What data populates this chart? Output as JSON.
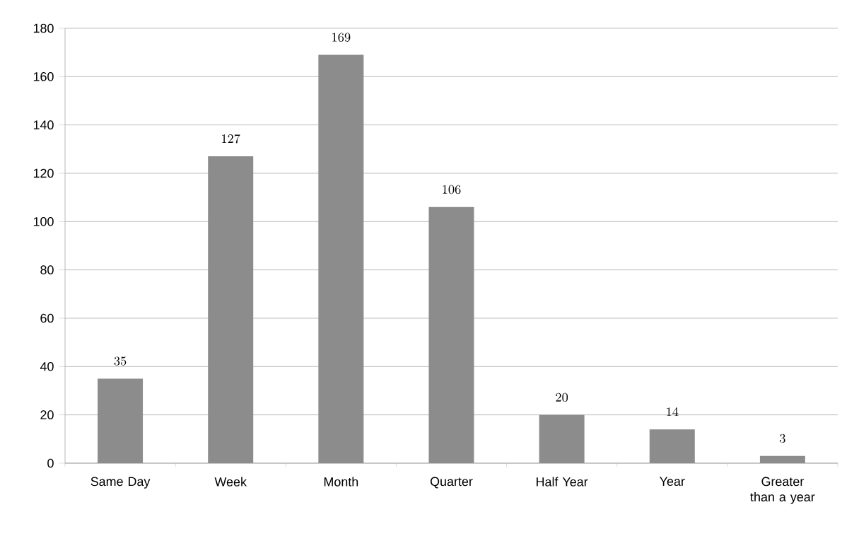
{
  "chart_data": {
    "type": "bar",
    "categories": [
      "Same Day",
      "Week",
      "Month",
      "Quarter",
      "Half Year",
      "Year",
      "Greater than a year"
    ],
    "values": [
      35,
      127,
      169,
      106,
      20,
      14,
      3
    ],
    "color": "#8c8c8c",
    "ylim": [
      0,
      180
    ],
    "yticks": [
      0,
      20,
      40,
      60,
      80,
      100,
      120,
      140,
      160,
      180
    ],
    "grid": "y",
    "data_labels": true
  }
}
